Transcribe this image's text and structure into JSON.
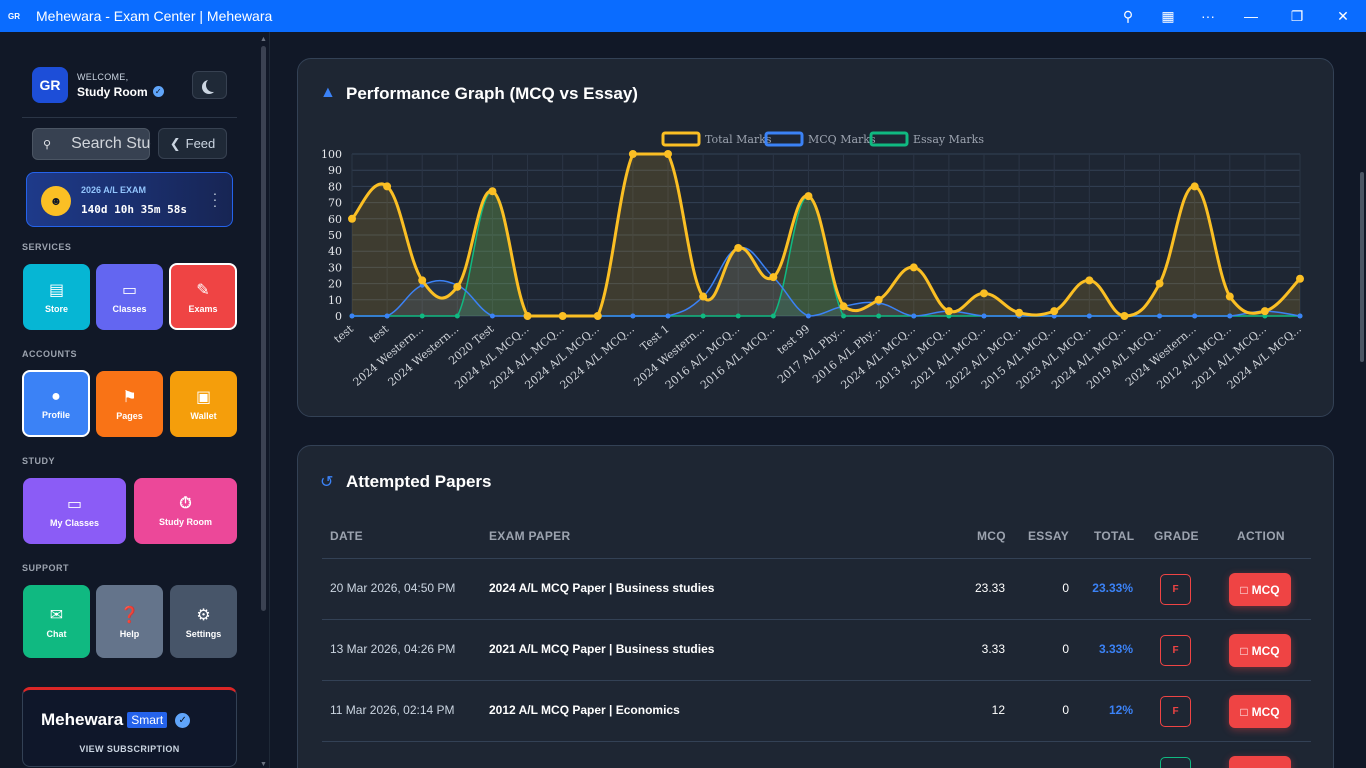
{
  "window": {
    "title": "Mehewara - Exam Center | Mehewara",
    "logo": "GR"
  },
  "sidebar": {
    "avatar_text": "GR",
    "welcome_label": "WELCOME,",
    "user_name": "Study Room",
    "search_placeholder": "Search Study",
    "feed_label": "Feed",
    "exam": {
      "title": "2026 A/L EXAM",
      "countdown": "140d 10h 35m 58s"
    },
    "sections": {
      "services": "SERVICES",
      "accounts": "ACCOUNTS",
      "study": "STUDY",
      "support": "SUPPORT"
    },
    "tiles": {
      "store": "Store",
      "classes": "Classes",
      "exams": "Exams",
      "profile": "Profile",
      "pages": "Pages",
      "wallet": "Wallet",
      "my_classes": "My Classes",
      "study_room": "Study Room",
      "chat": "Chat",
      "help": "Help",
      "settings": "Settings"
    },
    "smart": {
      "brand": "Mehewara",
      "badge": "Smart",
      "subtitle": "VIEW SUBSCRIPTION"
    }
  },
  "performance": {
    "title": "Performance Graph (MCQ vs Essay)"
  },
  "chart_data": {
    "type": "line",
    "title": "",
    "xlabel": "",
    "ylabel": "",
    "ylim": [
      0,
      100
    ],
    "yticks": [
      0,
      10,
      20,
      30,
      40,
      50,
      60,
      70,
      80,
      90,
      100
    ],
    "grid": true,
    "legend_position": "top-center",
    "categories": [
      "test",
      "test",
      "2024 Western...",
      "2024 Western...",
      "2020 Test",
      "2024 A/L MCQ...",
      "2024 A/L MCQ...",
      "2024 A/L MCQ...",
      "2024 A/L MCQ...",
      "Test 1",
      "2024 Western...",
      "2016 A/L MCQ...",
      "2016 A/L MCQ...",
      "test 99",
      "2017 A/L Phy...",
      "2016 A/L Phy...",
      "2024 A/L MCQ...",
      "2013 A/L MCQ...",
      "2021 A/L MCQ...",
      "2022 A/L MCQ...",
      "2015 A/L MCQ...",
      "2023 A/L MCQ...",
      "2024 A/L MCQ...",
      "2019 A/L MCQ...",
      "2024 Western...",
      "2012 A/L MCQ...",
      "2021 A/L MCQ...",
      "2024 A/L MCQ..."
    ],
    "series": [
      {
        "name": "Total Marks",
        "color": "#fbbf24",
        "values": [
          60,
          80,
          22,
          18,
          77,
          0,
          0,
          0,
          100,
          100,
          12,
          42,
          24,
          74,
          6,
          10,
          30,
          3,
          14,
          2,
          3,
          22,
          0,
          20,
          80,
          12,
          3,
          23
        ]
      },
      {
        "name": "MCQ Marks",
        "color": "#3b82f6",
        "values": [
          0,
          0,
          19,
          19,
          0,
          0,
          0,
          0,
          0,
          0,
          12,
          42,
          24,
          0,
          6,
          8,
          0,
          3,
          0,
          0,
          0,
          0,
          0,
          0,
          0,
          0,
          3,
          0
        ]
      },
      {
        "name": "Essay Marks",
        "color": "#10b981",
        "values": [
          0,
          0,
          0,
          0,
          77,
          0,
          0,
          0,
          0,
          0,
          0,
          0,
          0,
          74,
          0,
          0,
          0,
          0,
          0,
          0,
          0,
          0,
          0,
          0,
          0,
          0,
          0,
          0
        ]
      }
    ]
  },
  "attempted": {
    "title": "Attempted Papers",
    "headers": {
      "date": "DATE",
      "paper": "EXAM PAPER",
      "mcq": "MCQ",
      "essay": "ESSAY",
      "total": "TOTAL",
      "grade": "GRADE",
      "action": "ACTION"
    },
    "rows": [
      {
        "date": "20 Mar 2026, 04:50 PM",
        "paper": "2024 A/L MCQ Paper | Business studies",
        "mcq": "23.33",
        "essay": "0",
        "total": "23.33%",
        "grade": "F",
        "action": "MCQ"
      },
      {
        "date": "13 Mar 2026, 04:26 PM",
        "paper": "2021 A/L MCQ Paper | Business studies",
        "mcq": "3.33",
        "essay": "0",
        "total": "3.33%",
        "grade": "F",
        "action": "MCQ"
      },
      {
        "date": "11 Mar 2026, 02:14 PM",
        "paper": "2012 A/L MCQ Paper | Economics",
        "mcq": "12",
        "essay": "0",
        "total": "12%",
        "grade": "F",
        "action": "MCQ"
      }
    ]
  }
}
